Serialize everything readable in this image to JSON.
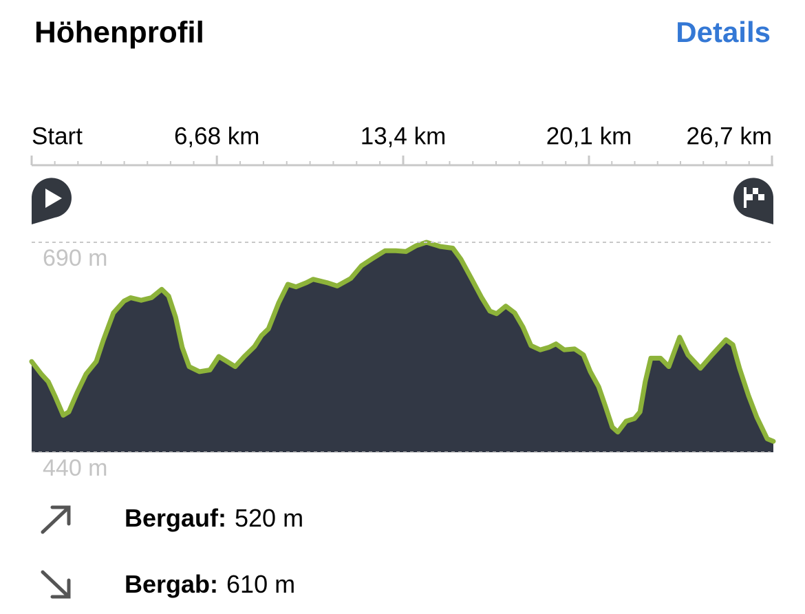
{
  "header": {
    "title": "Höhenprofil",
    "link": "Details"
  },
  "chart_data": {
    "type": "area",
    "x": [
      0,
      0.35,
      0.6,
      0.84,
      1.14,
      1.34,
      1.64,
      1.96,
      2.33,
      2.58,
      2.95,
      3.33,
      3.57,
      3.95,
      4.32,
      4.69,
      4.94,
      5.19,
      5.43,
      5.68,
      6.05,
      6.43,
      6.75,
      7.05,
      7.34,
      7.67,
      8.04,
      8.29,
      8.54,
      8.91,
      9.24,
      9.53,
      9.91,
      10.15,
      10.65,
      11.02,
      11.51,
      11.89,
      12.26,
      12.75,
      13.13,
      13.5,
      13.87,
      14.24,
      14.74,
      15.19,
      15.48,
      15.86,
      16.23,
      16.53,
      16.77,
      17.1,
      17.42,
      17.72,
      18.01,
      18.34,
      18.66,
      18.91,
      19.21,
      19.58,
      19.9,
      20.15,
      20.45,
      20.69,
      20.94,
      21.14,
      21.44,
      21.74,
      21.94,
      22.13,
      22.33,
      22.68,
      22.98,
      23.37,
      23.67,
      24.12,
      24.54,
      25.04,
      25.29,
      25.53,
      25.86,
      26.15,
      26.53,
      26.75
    ],
    "series": [
      {
        "color": "#8db33a",
        "fill": "#323845",
        "values": [
          548,
          533,
          524,
          507,
          484,
          488,
          511,
          533,
          548,
          573,
          606,
          620,
          624,
          621,
          624,
          634,
          626,
          601,
          565,
          542,
          536,
          538,
          554,
          548,
          542,
          554,
          566,
          579,
          587,
          618,
          640,
          637,
          642,
          646,
          642,
          638,
          647,
          662,
          670,
          680,
          680,
          679,
          686,
          690,
          685,
          683,
          670,
          647,
          624,
          608,
          605,
          614,
          606,
          589,
          567,
          562,
          565,
          569,
          562,
          563,
          556,
          536,
          518,
          495,
          470,
          464,
          477,
          480,
          488,
          524,
          552,
          552,
          542,
          577,
          556,
          540,
          556,
          574,
          568,
          540,
          507,
          482,
          456,
          453
        ]
      }
    ],
    "xlim": [
      0,
      26.75
    ],
    "xticks": [
      {
        "value": 0,
        "label": "Start"
      },
      {
        "value": 6.68,
        "label": "6,68 km"
      },
      {
        "value": 13.4,
        "label": "13,4 km"
      },
      {
        "value": 20.1,
        "label": "20,1 km"
      },
      {
        "value": 26.7,
        "label": "26,7 km"
      }
    ],
    "ylim": [
      440,
      690
    ],
    "yticks": [
      {
        "value": 690,
        "label": "690 m"
      },
      {
        "value": 440,
        "label": "440 m"
      }
    ]
  },
  "stats": [
    {
      "label": "Bergauf:",
      "value": "520 m"
    },
    {
      "label": "Bergab:",
      "value": "610 m"
    }
  ]
}
